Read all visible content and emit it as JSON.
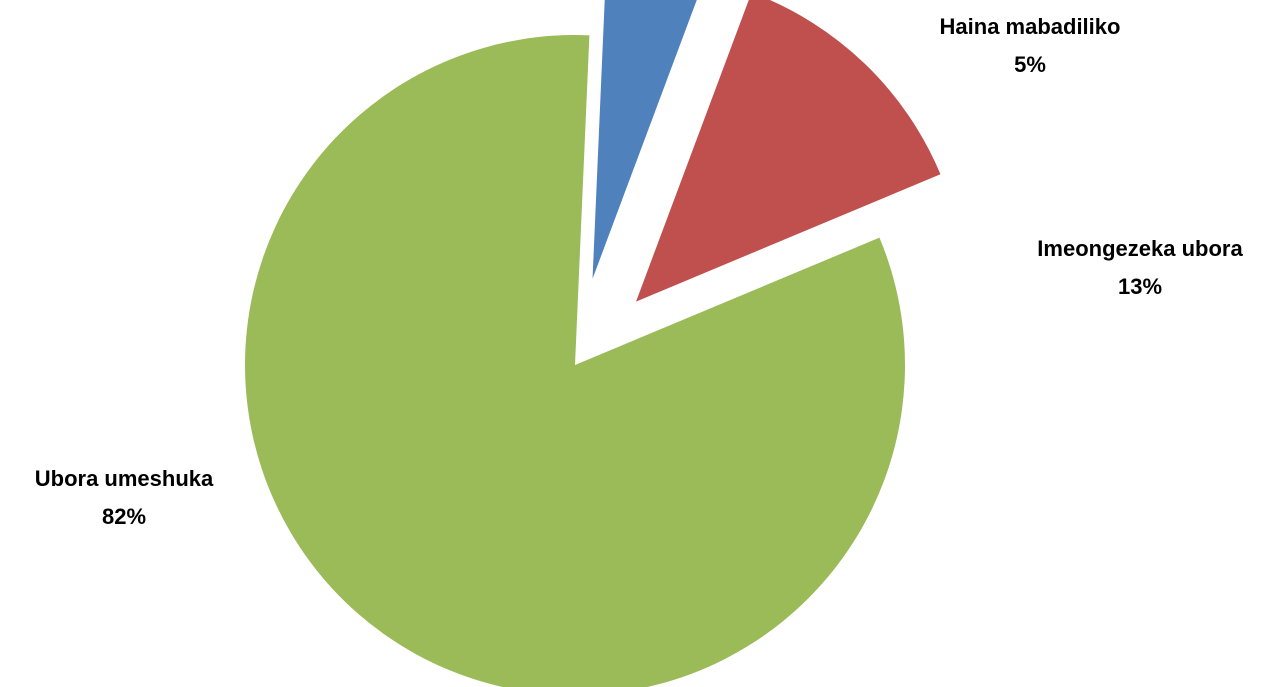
{
  "chart_data": {
    "type": "pie",
    "title": "",
    "slices": [
      {
        "label": "Haina mabadiliko",
        "value": 5,
        "value_label": "5%",
        "color": "#4f81bd",
        "exploded": true
      },
      {
        "label": "Imeongezeka ubora",
        "value": 13,
        "value_label": "13%",
        "color": "#c0504d",
        "exploded": true
      },
      {
        "label": "Ubora umeshuka",
        "value": 82,
        "value_label": "82%",
        "color": "#9bbb59",
        "exploded": false
      }
    ],
    "legend": "none",
    "data_labels": "outside"
  }
}
